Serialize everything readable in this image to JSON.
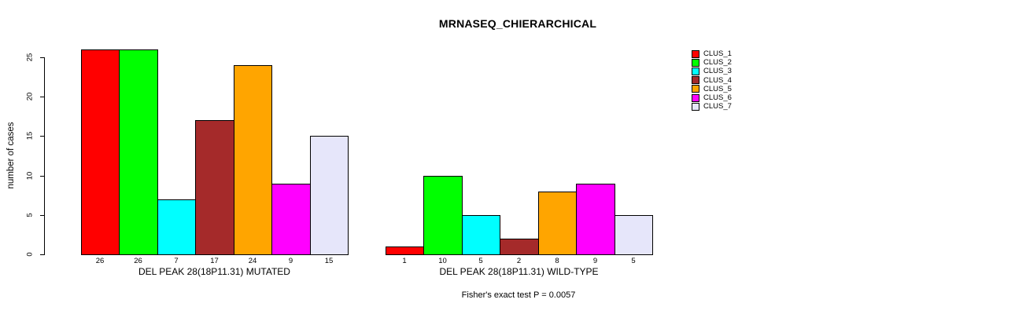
{
  "title": "MRNASEQ_CHIERARCHICAL",
  "footer": "Fisher's exact test P = 0.0057",
  "colors": {
    "background": "#FFFFFF",
    "axis": "#000000",
    "text": "#000000"
  },
  "chart_data": {
    "type": "bar",
    "title": "MRNASEQ_CHIERARCHICAL",
    "xlabel": "",
    "ylabel": "number of cases",
    "ylim": [
      0,
      26
    ],
    "yticks": [
      0,
      5,
      10,
      15,
      20,
      25
    ],
    "grid": false,
    "legend_position": "top-right-outside",
    "clusters": [
      {
        "name": "CLUS_1",
        "color": "#FF0000"
      },
      {
        "name": "CLUS_2",
        "color": "#00FF00"
      },
      {
        "name": "CLUS_3",
        "color": "#00FFFF"
      },
      {
        "name": "CLUS_4",
        "color": "#A52A2A"
      },
      {
        "name": "CLUS_5",
        "color": "#FFA500"
      },
      {
        "name": "CLUS_6",
        "color": "#FF00FF"
      },
      {
        "name": "CLUS_7",
        "color": "#E6E6FA"
      }
    ],
    "groups": [
      {
        "label": "DEL PEAK 28(18P11.31) MUTATED",
        "values": [
          26,
          26,
          7,
          17,
          24,
          9,
          15
        ]
      },
      {
        "label": "DEL PEAK 28(18P11.31) WILD-TYPE",
        "values": [
          1,
          10,
          5,
          2,
          8,
          9,
          5
        ]
      }
    ],
    "annotation": "Fisher's exact test P = 0.0057"
  }
}
